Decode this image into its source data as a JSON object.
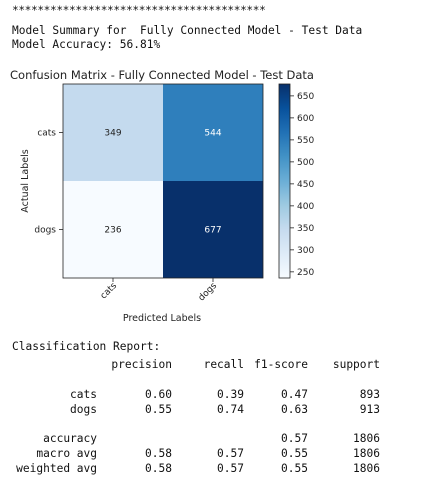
{
  "output": {
    "separator": "****************************************",
    "summary_line": "Model Summary for  Fully Connected Model - Test Data",
    "accuracy_line": "Model Accuracy: 56.81%"
  },
  "chart_data": {
    "type": "heatmap",
    "title": "Confusion Matrix - Fully Connected Model - Test Data",
    "xlabel": "Predicted Labels",
    "ylabel": "Actual Labels",
    "x_categories": [
      "cats",
      "dogs"
    ],
    "y_categories": [
      "cats",
      "dogs"
    ],
    "values": [
      [
        349,
        544
      ],
      [
        236,
        677
      ]
    ],
    "colormap": "Blues",
    "colorbar": {
      "min": 236,
      "max": 677,
      "ticks": [
        250,
        300,
        350,
        400,
        450,
        500,
        550,
        600,
        650
      ]
    },
    "grid": false
  },
  "report": {
    "title": "Classification Report:",
    "headers": [
      "precision",
      "recall",
      "f1-score",
      "support"
    ],
    "classes": [
      {
        "label": "cats",
        "precision": "0.60",
        "recall": "0.39",
        "f1": "0.47",
        "support": "893"
      },
      {
        "label": "dogs",
        "precision": "0.55",
        "recall": "0.74",
        "f1": "0.63",
        "support": "913"
      }
    ],
    "accuracy": {
      "label": "accuracy",
      "f1": "0.57",
      "support": "1806"
    },
    "averages": [
      {
        "label": "macro avg",
        "precision": "0.58",
        "recall": "0.57",
        "f1": "0.55",
        "support": "1806"
      },
      {
        "label": "weighted avg",
        "precision": "0.58",
        "recall": "0.57",
        "f1": "0.55",
        "support": "1806"
      }
    ]
  }
}
